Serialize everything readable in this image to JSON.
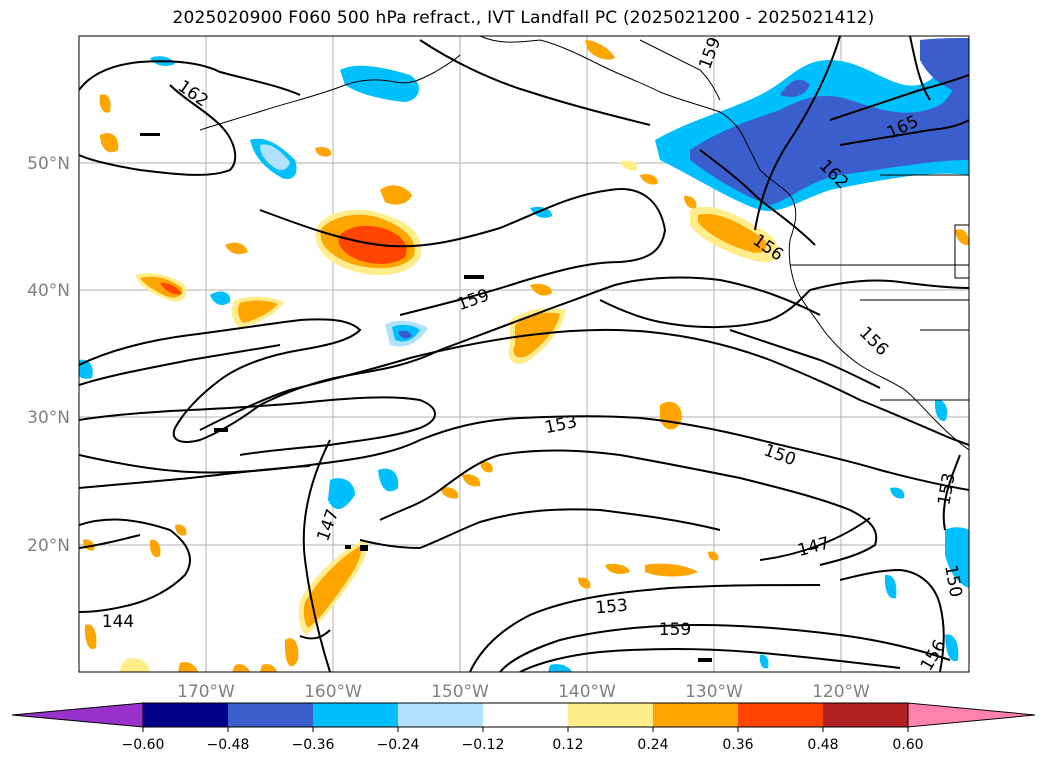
{
  "title": "2025020900 F060 500 hPa refract., IVT Landfall PC (2025021200 - 2025021412)",
  "map": {
    "lat_labels": [
      "50°N",
      "40°N",
      "30°N",
      "20°N"
    ],
    "lon_labels": [
      "170°W",
      "160°W",
      "150°W",
      "140°W",
      "130°W",
      "120°W"
    ],
    "contour_labels": [
      "162",
      "159",
      "165",
      "162",
      "156",
      "159",
      "156",
      "153",
      "150",
      "147",
      "153",
      "159",
      "144",
      "147",
      "153",
      "150",
      "156"
    ],
    "grid": true
  },
  "colorbar": {
    "ticks": [
      "−0.60",
      "−0.48",
      "−0.36",
      "−0.24",
      "−0.12",
      "0.12",
      "0.24",
      "0.36",
      "0.48",
      "0.60"
    ],
    "colors": [
      "#9932cc",
      "#00008b",
      "#3a5fcd",
      "#00bfff",
      "#b0e2ff",
      "#ffffff",
      "#ffec8b",
      "#ffa500",
      "#ff4500",
      "#b22222",
      "#ff82ab"
    ]
  }
}
